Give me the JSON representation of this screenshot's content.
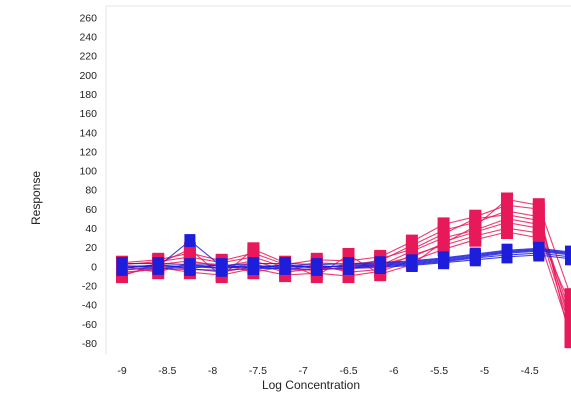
{
  "chart_data": {
    "type": "line",
    "title": "",
    "xlabel": "Log Concentration",
    "ylabel": "Response",
    "xlim": [
      -9.0,
      -4.0
    ],
    "ylim": [
      -90,
      270
    ],
    "x_ticks": [
      -9,
      -8.5,
      -8,
      -7.5,
      -7,
      -6.5,
      -6,
      -5.5,
      -5,
      -4.5,
      -4
    ],
    "x_tick_labels": [
      "-9",
      "-8.5",
      "-8",
      "-7.5",
      "-7",
      "-6.5",
      "-6",
      "-5.5",
      "-5",
      "-4.5",
      "-"
    ],
    "y_ticks": [
      -80,
      -60,
      -40,
      -20,
      0,
      20,
      40,
      60,
      80,
      100,
      120,
      140,
      160,
      180,
      200,
      220,
      240,
      260
    ],
    "y_tick_labels": [
      "-80",
      "-60",
      "-40",
      "-20",
      "0",
      "20",
      "40",
      "60",
      "80",
      "100",
      "120",
      "140",
      "160",
      "180",
      "200",
      "220",
      "240",
      "260"
    ],
    "grid": false,
    "legend": "none",
    "x": [
      -9.0,
      -8.6,
      -8.25,
      -7.9,
      -7.55,
      -7.2,
      -6.85,
      -6.5,
      -6.15,
      -5.8,
      -5.45,
      -5.1,
      -4.75,
      -4.4,
      -4.05
    ],
    "series": [
      {
        "color": "#e8195a",
        "marker": "square",
        "values": [
          [
            -2,
            2,
            6,
            0,
            6,
            -4,
            2,
            -6,
            -3,
            12,
            22,
            32,
            40,
            35,
            -40
          ],
          [
            -6,
            -3,
            2,
            -2,
            3,
            -6,
            -2,
            -2,
            1,
            16,
            30,
            38,
            50,
            44,
            -55
          ],
          [
            2,
            5,
            10,
            4,
            10,
            -1,
            4,
            2,
            6,
            22,
            38,
            46,
            58,
            52,
            -62
          ],
          [
            -8,
            -1,
            -6,
            -9,
            -2,
            -9,
            -7,
            -10,
            -5,
            6,
            18,
            28,
            36,
            30,
            -70
          ],
          [
            4,
            7,
            14,
            6,
            14,
            2,
            7,
            6,
            10,
            26,
            44,
            52,
            64,
            60,
            -78
          ],
          [
            -4,
            0,
            -2,
            -6,
            0,
            -3,
            -4,
            0,
            2,
            10,
            24,
            42,
            70,
            64,
            -30
          ],
          [
            0,
            -6,
            4,
            2,
            -6,
            0,
            0,
            -4,
            8,
            18,
            34,
            50,
            54,
            48,
            -50
          ],
          [
            -10,
            3,
            18,
            -10,
            18,
            4,
            -10,
            12,
            -8,
            2,
            26,
            36,
            46,
            40,
            -65
          ]
        ]
      },
      {
        "color": "#1d1ddc",
        "marker": "square",
        "values": [
          [
            0,
            1,
            0,
            -2,
            0,
            1,
            0,
            0,
            1,
            3,
            6,
            10,
            14,
            16,
            12
          ],
          [
            -3,
            -2,
            -3,
            -4,
            -2,
            -2,
            -3,
            -2,
            -1,
            1,
            4,
            7,
            10,
            12,
            8
          ],
          [
            3,
            3,
            2,
            1,
            3,
            3,
            2,
            3,
            4,
            6,
            9,
            13,
            17,
            19,
            15
          ],
          [
            -1,
            0,
            27,
            0,
            -1,
            0,
            -1,
            1,
            2,
            4,
            7,
            11,
            15,
            17,
            13
          ],
          [
            1,
            -1,
            1,
            -1,
            1,
            -1,
            1,
            -1,
            0,
            2,
            5,
            9,
            12,
            14,
            10
          ],
          [
            -2,
            2,
            -2,
            2,
            -2,
            2,
            -2,
            2,
            3,
            5,
            8,
            12,
            16,
            18,
            14
          ]
        ]
      }
    ]
  }
}
